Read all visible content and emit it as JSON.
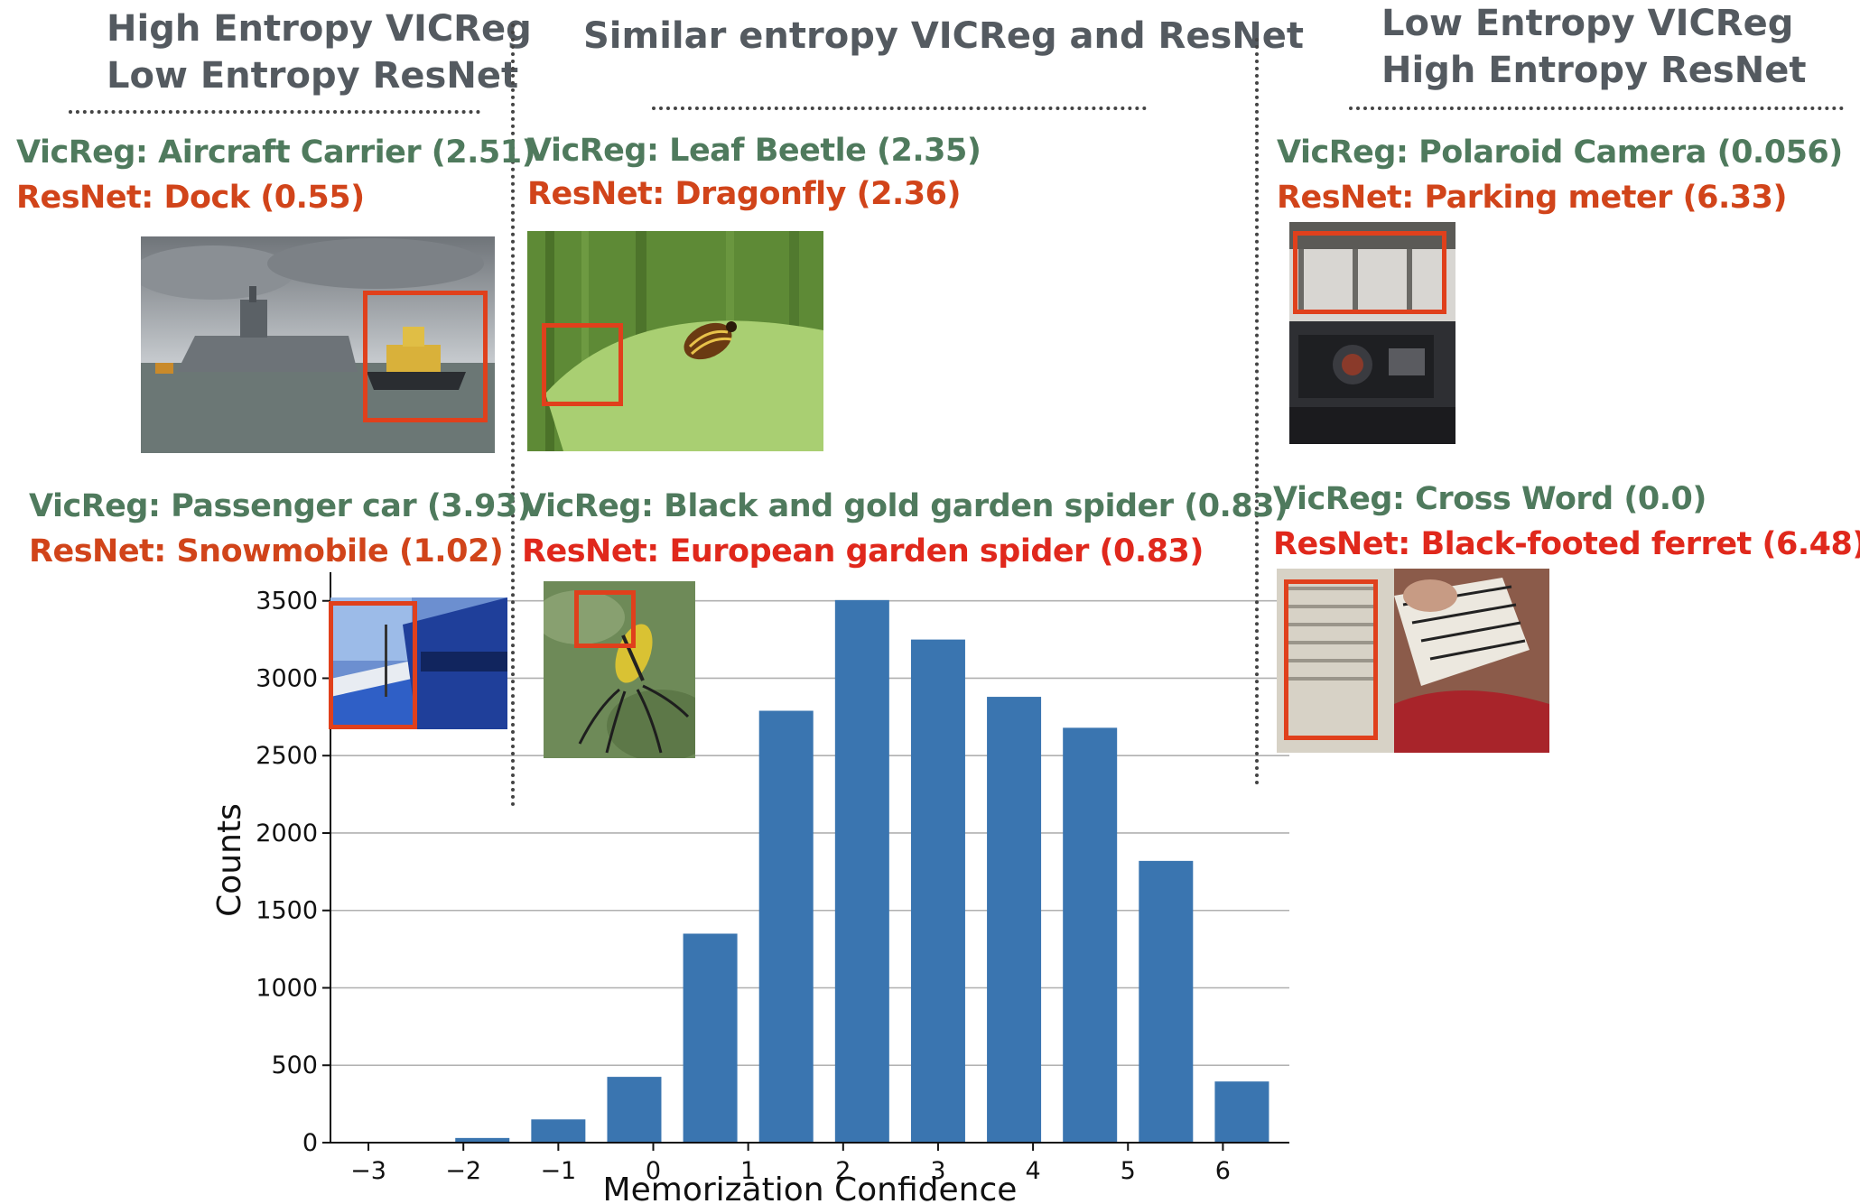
{
  "headers": {
    "left_line1": "High Entropy VICReg",
    "left_line2": "Low Entropy ResNet",
    "middle": "Similar entropy VICReg and ResNet",
    "right_line1": "Low Entropy VICReg",
    "right_line2": "High Entropy ResNet"
  },
  "examples": {
    "carrier": {
      "vicreg": "VicReg: Aircraft Carrier (2.51)",
      "resnet": "ResNet: Dock (0.55)"
    },
    "beetle": {
      "vicreg": "VicReg: Leaf Beetle (2.35)",
      "resnet": "ResNet: Dragonfly (2.36)"
    },
    "polaroid": {
      "vicreg": "VicReg: Polaroid Camera (0.056)",
      "resnet": "ResNet: Parking meter (6.33)"
    },
    "car": {
      "vicreg": "VicReg: Passenger car (3.93)",
      "resnet": "ResNet: Snowmobile (1.02)"
    },
    "spider": {
      "vicreg": "VicReg: Black and gold garden spider (0.83)",
      "resnet": "ResNet: European garden spider (0.83)"
    },
    "crossword": {
      "vicreg": "VicReg: Cross Word (0.0)",
      "resnet": "ResNet: Black-footed ferret (6.48)"
    }
  },
  "colors": {
    "bar": "#3a75b0",
    "vicreg_text": "#4f7a5d",
    "resnet_text": "#d1441a",
    "highlight_box": "#e0401c",
    "header_text": "#545a60"
  },
  "chart_data": {
    "type": "bar",
    "xlabel": "Memorization Confidence",
    "ylabel": "Counts",
    "x": [
      -2.6,
      -1.8,
      -1.0,
      -0.2,
      0.6,
      1.4,
      2.2,
      3.0,
      3.8,
      4.6,
      5.4,
      6.2
    ],
    "values": [
      5,
      30,
      150,
      425,
      1350,
      2790,
      3505,
      3250,
      2880,
      2680,
      1820,
      395
    ],
    "xticks": [
      -3,
      -2,
      -1,
      0,
      1,
      2,
      3,
      4,
      5,
      6
    ],
    "xtick_labels": [
      "−3",
      "−2",
      "−1",
      "0",
      "1",
      "2",
      "3",
      "4",
      "5",
      "6"
    ],
    "yticks": [
      0,
      500,
      1000,
      1500,
      2000,
      2500,
      3000,
      3500
    ],
    "ytick_labels": [
      "0",
      "500",
      "1000",
      "1500",
      "2000",
      "2500",
      "3000",
      "3500"
    ],
    "xlim": [
      -3.4,
      6.7
    ],
    "ylim": [
      0,
      3650
    ],
    "grid": "horizontal"
  }
}
